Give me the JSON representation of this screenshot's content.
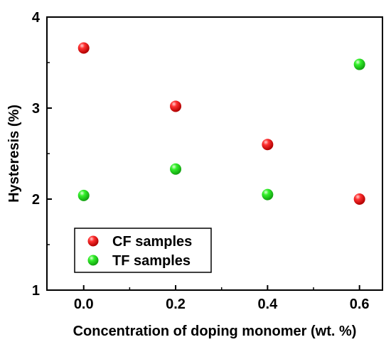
{
  "chart_data": {
    "type": "scatter",
    "title": "",
    "xlabel": "Concentration of doping monomer (wt. %)",
    "ylabel": "Hysteresis (%)",
    "xlim": [
      -0.08,
      0.65
    ],
    "ylim": [
      1,
      4
    ],
    "xticks": [
      0.0,
      0.2,
      0.4,
      0.6
    ],
    "xtick_labels": [
      "0.0",
      "0.2",
      "0.4",
      "0.6"
    ],
    "yticks": [
      1,
      2,
      3,
      4
    ],
    "ytick_labels": [
      "1",
      "2",
      "3",
      "4"
    ],
    "grid": false,
    "legend_position": "bottom-left",
    "series": [
      {
        "name": "CF samples",
        "color": "#ff1a1a",
        "x": [
          0.0,
          0.2,
          0.4,
          0.6
        ],
        "y": [
          3.66,
          3.02,
          2.6,
          2.0
        ]
      },
      {
        "name": "TF samples",
        "color": "#22e61c",
        "x": [
          0.0,
          0.2,
          0.4,
          0.6
        ],
        "y": [
          2.04,
          2.33,
          2.05,
          3.48
        ]
      }
    ]
  }
}
